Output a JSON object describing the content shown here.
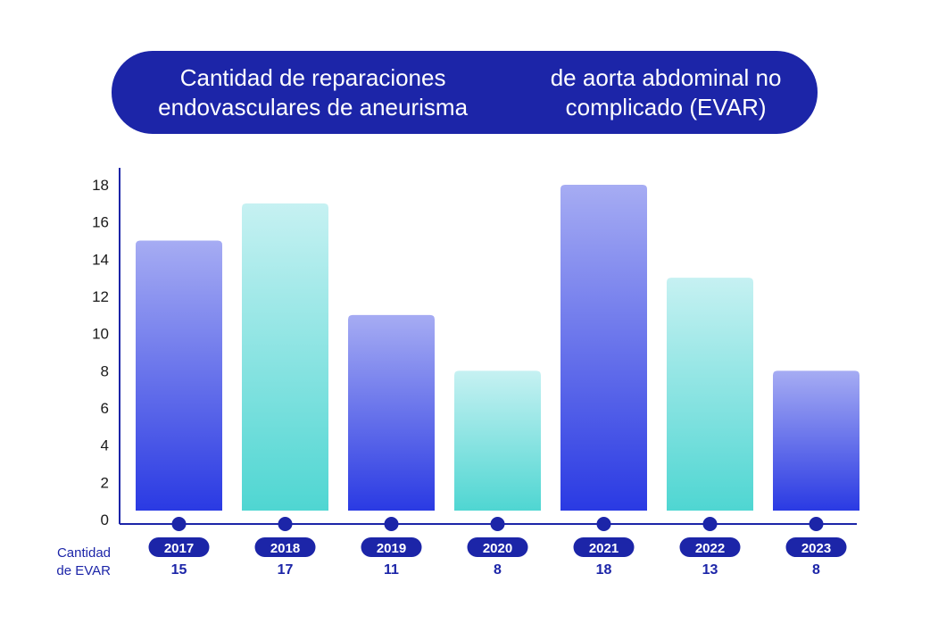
{
  "chart_data": {
    "type": "bar",
    "title_lines": [
      "Cantidad de reparaciones endovasculares de aneurisma",
      "de aorta abdominal no complicado (EVAR)"
    ],
    "categories": [
      "2017",
      "2018",
      "2019",
      "2020",
      "2021",
      "2022",
      "2023"
    ],
    "values": [
      15,
      17,
      11,
      8,
      18,
      13,
      8
    ],
    "value_labels": [
      "15",
      "17",
      "11",
      "8",
      "18",
      "13",
      "8"
    ],
    "row_label_lines": [
      "Cantidad",
      "de EVAR"
    ],
    "xlabel": "",
    "ylabel": "",
    "ylim": [
      0,
      18
    ],
    "yticks": [
      "0",
      "2",
      "4",
      "6",
      "8",
      "10",
      "12",
      "14",
      "16",
      "18"
    ],
    "grid": false,
    "legend": "none",
    "colors": {
      "title_bg": "#1c25a8",
      "axis": "#1c25a8",
      "blue_top": "#a6acf3",
      "blue_bottom": "#2a3ae3",
      "teal_top": "#c6f1f2",
      "teal_bottom": "#4fd6d2"
    }
  }
}
